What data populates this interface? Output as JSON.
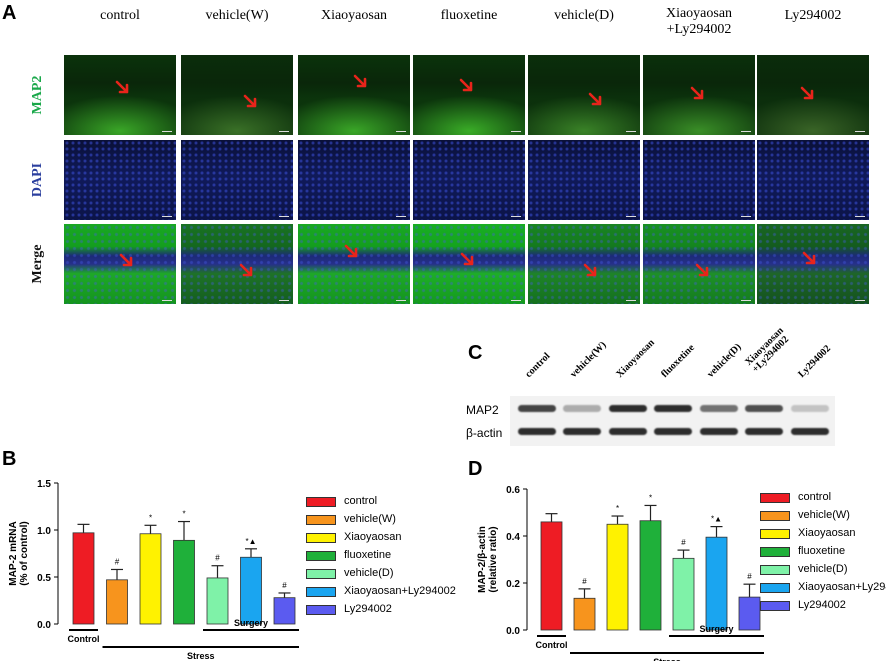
{
  "panelA": {
    "letter": "A",
    "columns": [
      "control",
      "vehicle(W)",
      "Xiaoyaosan",
      "fluoxetine",
      "vehicle(D)",
      "Xiaoyaosan\n+Ly294002",
      "Ly294002"
    ],
    "rows": [
      {
        "label": "MAP2",
        "color": "#1aa84a"
      },
      {
        "label": "DAPI",
        "color": "#2b3f9e"
      },
      {
        "label": "Merge",
        "color": "#111111"
      }
    ],
    "arrow_color": "#e8241b"
  },
  "panelC": {
    "letter": "C",
    "lanes": [
      "control",
      "vehicle(W)",
      "Xiaoyaosan",
      "fluoxetine",
      "vehicle(D)",
      "Xiaoyaosan\n+Ly294002",
      "Ly294002"
    ],
    "bands": [
      {
        "label": "MAP2",
        "intensities": [
          0.75,
          0.3,
          0.85,
          0.85,
          0.55,
          0.7,
          0.2
        ]
      },
      {
        "label": "β-actin",
        "intensities": [
          0.85,
          0.85,
          0.85,
          0.85,
          0.85,
          0.85,
          0.85
        ]
      }
    ]
  },
  "colors": {
    "control": "#ee1c24",
    "vehicle(W)": "#f7941d",
    "Xiaoyaosan": "#fff200",
    "fluoxetine": "#1fb03a",
    "vehicle(D)": "#7ff2a8",
    "Xiaoyaosan+Ly294002": "#1aa5f0",
    "Ly294002": "#5b5bf0"
  },
  "chart_data": [
    {
      "panel": "B",
      "type": "bar",
      "categories": [
        "control",
        "vehicle(W)",
        "Xiaoyaosan",
        "fluoxetine",
        "vehicle(D)",
        "Xiaoyaosan+Ly294002",
        "Ly294002"
      ],
      "values": [
        0.97,
        0.47,
        0.96,
        0.89,
        0.49,
        0.71,
        0.28
      ],
      "errors": [
        0.09,
        0.11,
        0.09,
        0.2,
        0.13,
        0.09,
        0.05
      ],
      "markers": [
        "",
        "#",
        "*",
        "*",
        "#",
        "*▲",
        "#"
      ],
      "ylabel": "MAP-2 mRNA\n(% of control)",
      "ylim": [
        0,
        1.5
      ],
      "yticks": [
        "0.0",
        "0.5",
        "1.0",
        "1.5"
      ],
      "groups": {
        "control": "Control",
        "stress": "Stress",
        "surgery": "Surgery"
      },
      "legend": [
        "control",
        "vehicle(W)",
        "Xiaoyaosan",
        "fluoxetine",
        "vehicle(D)",
        "Xiaoyaosan+Ly294002",
        "Ly294002"
      ]
    },
    {
      "panel": "D",
      "type": "bar",
      "categories": [
        "control",
        "vehicle(W)",
        "Xiaoyaosan",
        "fluoxetine",
        "vehicle(D)",
        "Xiaoyaosan+Ly294002",
        "Ly294002"
      ],
      "values": [
        0.46,
        0.135,
        0.45,
        0.465,
        0.305,
        0.395,
        0.14
      ],
      "errors": [
        0.035,
        0.04,
        0.035,
        0.065,
        0.035,
        0.045,
        0.055
      ],
      "markers": [
        "",
        "#",
        "*",
        "*",
        "#",
        "*▲",
        "#"
      ],
      "ylabel": "MAP-2/β-actin\n(relative ratio)",
      "ylim": [
        0,
        0.6
      ],
      "yticks": [
        "0.0",
        "0.2",
        "0.4",
        "0.6"
      ],
      "groups": {
        "control": "Control",
        "stress": "Stress",
        "surgery": "Surgery"
      },
      "legend": [
        "control",
        "vehicle(W)",
        "Xiaoyaosan",
        "fluoxetine",
        "vehicle(D)",
        "Xiaoyaosan+Ly294002",
        "Ly294002"
      ]
    }
  ]
}
